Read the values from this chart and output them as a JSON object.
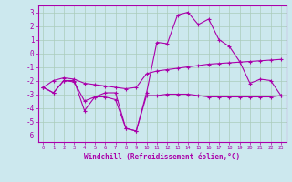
{
  "title": "",
  "xlabel": "Windchill (Refroidissement éolien,°C)",
  "background_color": "#cce8ee",
  "grid_color": "#aaccbb",
  "line_color": "#aa00aa",
  "x_ticks": [
    0,
    1,
    2,
    3,
    4,
    5,
    6,
    7,
    8,
    9,
    10,
    11,
    12,
    13,
    14,
    15,
    16,
    17,
    18,
    19,
    20,
    21,
    22,
    23
  ],
  "ylim": [
    -6.5,
    3.5
  ],
  "xlim": [
    -0.5,
    23.5
  ],
  "yticks": [
    -6,
    -5,
    -4,
    -3,
    -2,
    -1,
    0,
    1,
    2,
    3
  ],
  "line1_x": [
    0,
    1,
    2,
    3,
    4,
    5,
    6,
    7,
    8,
    9,
    10,
    11,
    12,
    13,
    14,
    15,
    16,
    17,
    18,
    19,
    20,
    21,
    22,
    23
  ],
  "line1_y": [
    -2.5,
    -2.9,
    -2.0,
    -2.0,
    -4.2,
    -3.2,
    -3.2,
    -3.4,
    -5.5,
    -5.7,
    -3.1,
    -3.1,
    -3.0,
    -3.0,
    -3.0,
    -3.1,
    -3.2,
    -3.2,
    -3.2,
    -3.2,
    -3.2,
    -3.2,
    -3.2,
    -3.1
  ],
  "line2_x": [
    0,
    1,
    2,
    3,
    4,
    5,
    6,
    7,
    8,
    9,
    10,
    11,
    12,
    13,
    14,
    15,
    16,
    17,
    18,
    19,
    20,
    21,
    22,
    23
  ],
  "line2_y": [
    -2.5,
    -2.0,
    -1.8,
    -1.9,
    -2.2,
    -2.3,
    -2.4,
    -2.5,
    -2.6,
    -2.5,
    -1.5,
    -1.3,
    -1.2,
    -1.1,
    -1.0,
    -0.9,
    -0.8,
    -0.75,
    -0.7,
    -0.65,
    -0.6,
    -0.55,
    -0.5,
    -0.45
  ],
  "line3_x": [
    0,
    1,
    2,
    3,
    4,
    5,
    6,
    7,
    8,
    9,
    10,
    11,
    12,
    13,
    14,
    15,
    16,
    17,
    18,
    19,
    20,
    21,
    22,
    23
  ],
  "line3_y": [
    -2.5,
    -2.9,
    -2.0,
    -2.1,
    -3.5,
    -3.2,
    -2.9,
    -2.9,
    -5.5,
    -5.7,
    -2.9,
    0.8,
    0.7,
    2.8,
    3.0,
    2.1,
    2.5,
    1.0,
    0.5,
    -0.6,
    -2.2,
    -1.9,
    -2.0,
    -3.1
  ]
}
